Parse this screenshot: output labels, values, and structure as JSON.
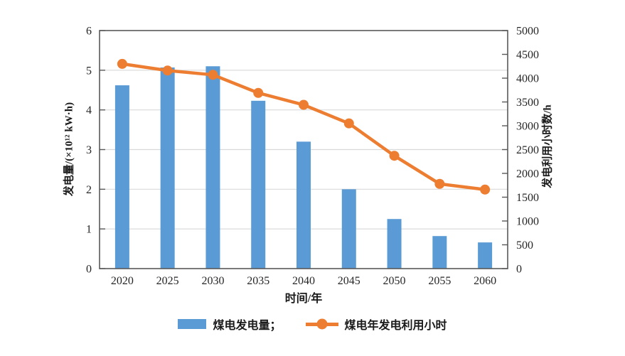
{
  "chart_data": {
    "type": "bar",
    "categories": [
      "2020",
      "2025",
      "2030",
      "2035",
      "2040",
      "2045",
      "2050",
      "2055",
      "2060"
    ],
    "series": [
      {
        "name": "煤电发电量",
        "type": "bar",
        "axis": "left",
        "color": "#5b9bd5",
        "values": [
          4.62,
          5.07,
          5.1,
          4.23,
          3.2,
          2.0,
          1.25,
          0.82,
          0.66
        ]
      },
      {
        "name": "煤电年发电利用小时",
        "type": "line",
        "axis": "right",
        "color": "#ed7d31",
        "values": [
          4300,
          4160,
          4070,
          3690,
          3440,
          3050,
          2370,
          1780,
          1660
        ]
      }
    ],
    "title": "",
    "xlabel": "时间/年",
    "ylabel_left": "发电量/(×10¹² kW·h)",
    "ylabel_right": "发电利用小时数/h",
    "ylim_left": [
      0,
      6
    ],
    "ylim_right": [
      0,
      5000
    ],
    "left_ticks": [
      0,
      1,
      2,
      3,
      4,
      5,
      6
    ],
    "right_ticks": [
      0,
      500,
      1000,
      1500,
      2000,
      2500,
      3000,
      3500,
      4000,
      4500,
      5000
    ],
    "grid": "horizontal gridlines at left-axis values 1-5",
    "legend_position": "bottom"
  },
  "legend": {
    "bar_label": "煤电发电量；",
    "line_label": "煤电年发电利用小时"
  },
  "colors": {
    "bar": "#5b9bd5",
    "line": "#ed7d31",
    "axis": "#595959",
    "grid": "#d9d9d9",
    "text": "#262626",
    "background": "#ffffff"
  }
}
